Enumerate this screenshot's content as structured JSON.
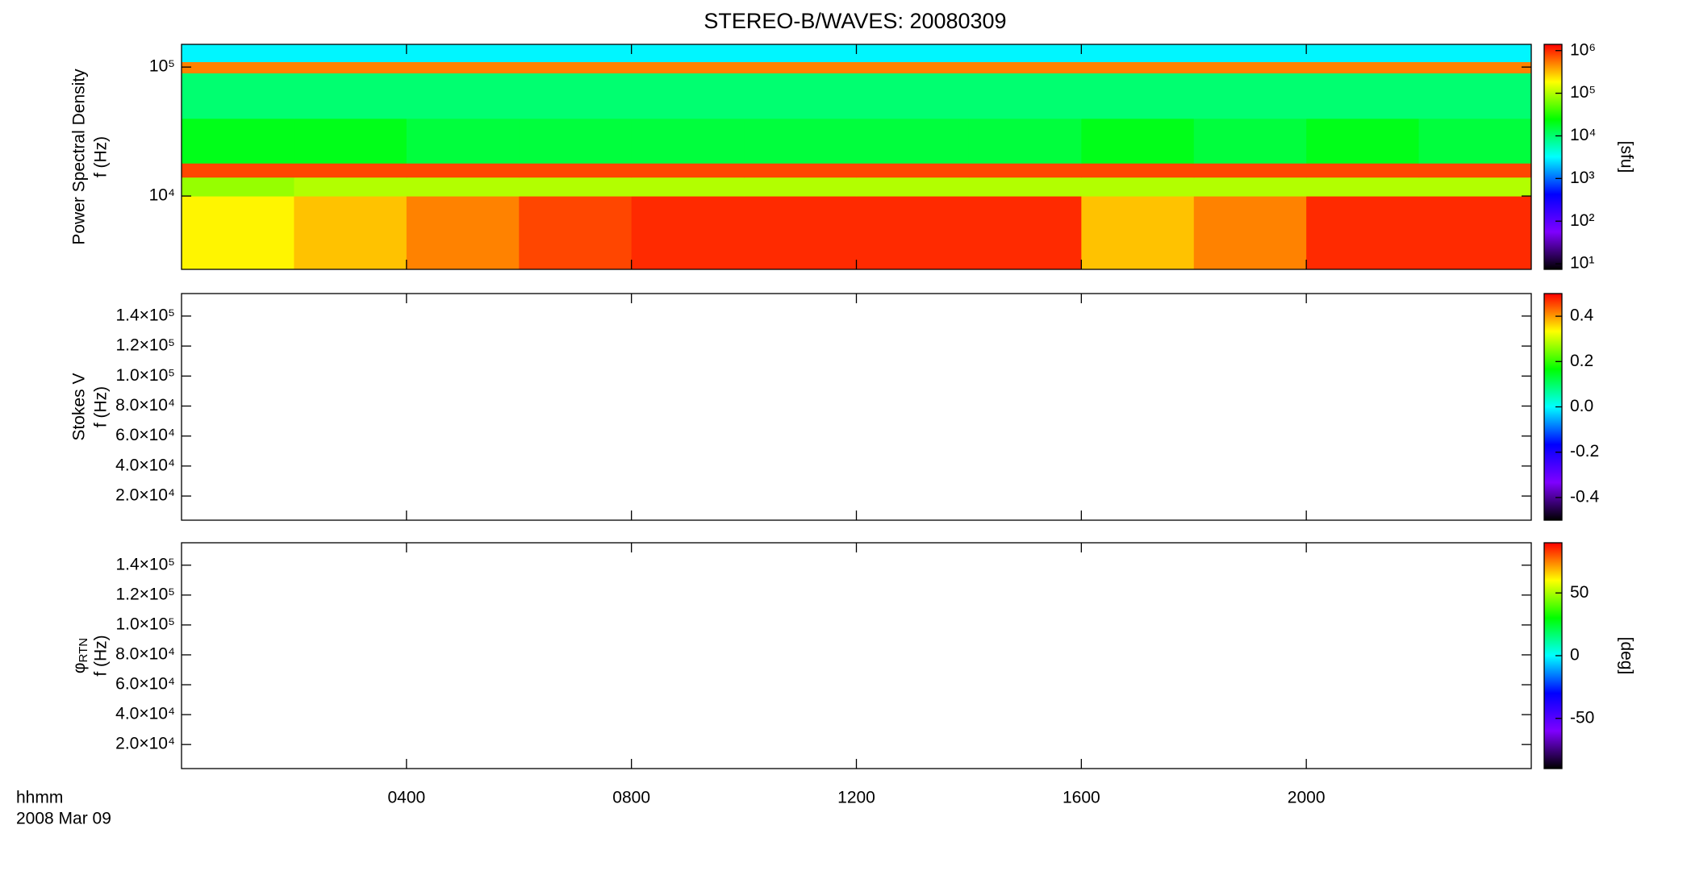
{
  "chart_data": [
    {
      "type": "heatmap",
      "title": "STEREO-B/WAVES: 20080309",
      "ylabel_lines": [
        "Power Spectral Density",
        "f (Hz)"
      ],
      "ylog": true,
      "ylim": [
        2700,
        150000
      ],
      "yticks": [
        {
          "value": 10000,
          "label": "10⁴"
        },
        {
          "value": 100000,
          "label": "10⁵"
        }
      ],
      "xlim": [
        0,
        24
      ],
      "x_bins": [
        0,
        2,
        4,
        6,
        8,
        10,
        12,
        14,
        16,
        18,
        20,
        22,
        24
      ],
      "y_bins": [
        2700,
        10000,
        14000,
        18000,
        40000,
        90000,
        110000,
        150000
      ],
      "z": [
        [
          200000,
          300000,
          500000,
          800000,
          1000000,
          1000000,
          1000000,
          1000000,
          300000,
          500000,
          1000000,
          1000000
        ],
        [
          80000,
          100000,
          100000,
          100000,
          100000,
          100000,
          100000,
          100000,
          100000,
          100000,
          100000,
          100000
        ],
        [
          800000,
          800000,
          800000,
          800000,
          800000,
          800000,
          800000,
          800000,
          800000,
          800000,
          800000,
          800000
        ],
        [
          20000,
          20000,
          15000,
          15000,
          15000,
          15000,
          15000,
          15000,
          20000,
          15000,
          20000,
          15000
        ],
        [
          10000,
          10000,
          10000,
          10000,
          10000,
          10000,
          10000,
          10000,
          10000,
          10000,
          10000,
          10000
        ],
        [
          500000,
          500000,
          500000,
          500000,
          500000,
          500000,
          500000,
          500000,
          500000,
          500000,
          500000,
          500000
        ],
        [
          3000,
          3000,
          3000,
          3000,
          3000,
          3000,
          3000,
          3000,
          3000,
          3000,
          3000,
          3000
        ]
      ],
      "colormap": [
        "#000000",
        "#7f00ff",
        "#0000ff",
        "#00ffff",
        "#00ff00",
        "#ffff00",
        "#ff0000"
      ],
      "clog": true,
      "clim": [
        7.4,
        1400000
      ],
      "cticks": [
        {
          "value": 10,
          "label": "10¹"
        },
        {
          "value": 100,
          "label": "10²"
        },
        {
          "value": 1000,
          "label": "10³"
        },
        {
          "value": 10000,
          "label": "10⁴"
        },
        {
          "value": 100000,
          "label": "10⁵"
        },
        {
          "value": 1000000,
          "label": "10⁶"
        }
      ],
      "clabel": "[sfu]"
    },
    {
      "type": "heatmap",
      "ylabel_lines": [
        "Stokes V",
        "f (Hz)"
      ],
      "ylog": false,
      "ylim": [
        3900,
        155000
      ],
      "yticks": [
        {
          "value": 20000,
          "label": "2.0×10⁴"
        },
        {
          "value": 40000,
          "label": "4.0×10⁴"
        },
        {
          "value": 60000,
          "label": "6.0×10⁴"
        },
        {
          "value": 80000,
          "label": "8.0×10⁴"
        },
        {
          "value": 100000,
          "label": "1.0×10⁵"
        },
        {
          "value": 120000,
          "label": "1.2×10⁵"
        },
        {
          "value": 140000,
          "label": "1.4×10⁵"
        }
      ],
      "xlim": [
        0,
        24
      ],
      "colormap": [
        "#000000",
        "#7f00ff",
        "#0000ff",
        "#00ffff",
        "#00ff00",
        "#ffff00",
        "#ff0000"
      ],
      "clog": false,
      "clim": [
        -0.5,
        0.5
      ],
      "cticks": [
        -0.4,
        -0.2,
        {
          "value": 0,
          "label": "0.0"
        },
        0.2,
        0.4
      ]
    },
    {
      "type": "heatmap",
      "ylabel_symbol": "φ",
      "ylabel_sub": "RTN",
      "ylabel_lines": [
        "f (Hz)"
      ],
      "ylog": false,
      "ylim": [
        3900,
        155000
      ],
      "yticks": [
        {
          "value": 20000,
          "label": "2.0×10⁴"
        },
        {
          "value": 40000,
          "label": "4.0×10⁴"
        },
        {
          "value": 60000,
          "label": "6.0×10⁴"
        },
        {
          "value": 80000,
          "label": "8.0×10⁴"
        },
        {
          "value": 100000,
          "label": "1.0×10⁵"
        },
        {
          "value": 120000,
          "label": "1.2×10⁵"
        },
        {
          "value": 140000,
          "label": "1.4×10⁵"
        }
      ],
      "xlim": [
        0,
        24
      ],
      "xticks": [
        {
          "value": 4,
          "label": "0400"
        },
        {
          "value": 8,
          "label": "0800"
        },
        {
          "value": 12,
          "label": "1200"
        },
        {
          "value": 16,
          "label": "1600"
        },
        {
          "value": 20,
          "label": "2000"
        }
      ],
      "xlabel": "hhmm",
      "date": "2008 Mar 09",
      "colormap": [
        "#000000",
        "#7f00ff",
        "#0000ff",
        "#00ffff",
        "#00ff00",
        "#ffff00",
        "#ff0000"
      ],
      "clog": false,
      "clim": [
        -90,
        90
      ],
      "cticks": [
        -50,
        0,
        50
      ],
      "clabel": "[deg]"
    }
  ]
}
